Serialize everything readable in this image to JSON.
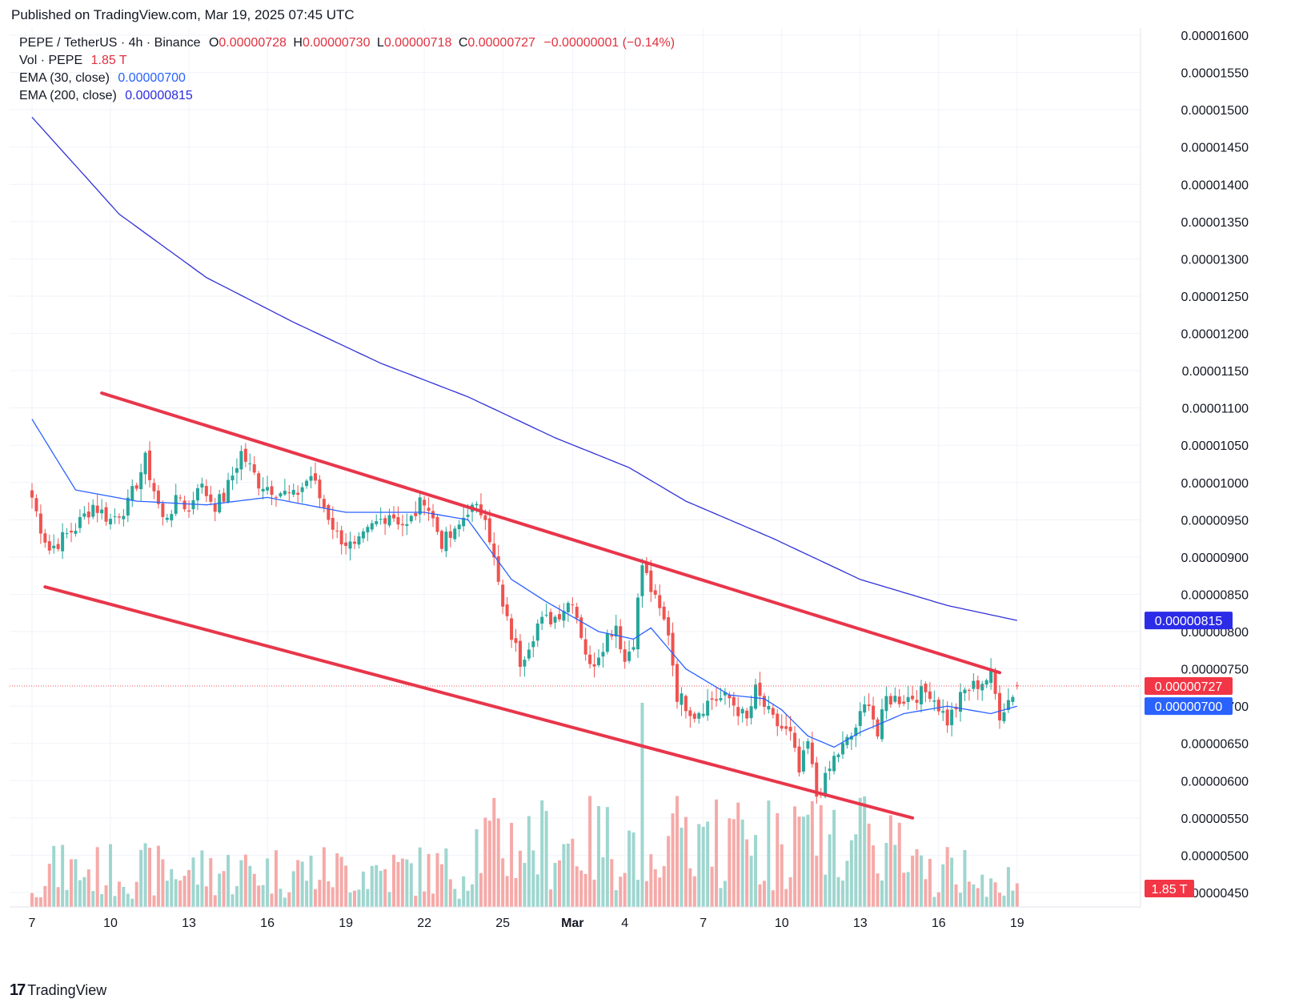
{
  "header": {
    "published": "Published on TradingView.com, Mar 19, 2025 07:45 UTC"
  },
  "legend": {
    "symbol": "PEPE / TetherUS · 4h · Binance",
    "open_label": "O",
    "open": "0.00000728",
    "high_label": "H",
    "high": "0.00000730",
    "low_label": "L",
    "low": "0.00000718",
    "close_label": "C",
    "close": "0.00000727",
    "change": "−0.00000001 (−0.14%)",
    "vol_label": "Vol · PEPE",
    "vol": "1.85 T",
    "ema30_label": "EMA (30, close)",
    "ema30": "0.00000700",
    "ema200_label": "EMA (200, close)",
    "ema200": "0.00000815"
  },
  "footer": {
    "brand": "TradingView",
    "logo_mark": "17"
  },
  "colors": {
    "up": "#26a69a",
    "down": "#ef5350",
    "ema30": "#2962ff",
    "ema200": "#3030d8",
    "trendline": "#e8364b",
    "grid": "#f0f3fa"
  },
  "chart_data": {
    "type": "candlestick",
    "symbol": "PEPE / TetherUS",
    "interval": "4h",
    "exchange": "Binance",
    "x_tick_labels": [
      "7",
      "10",
      "13",
      "16",
      "19",
      "22",
      "25",
      "Mar",
      "4",
      "7",
      "10",
      "13",
      "16",
      "19"
    ],
    "x_tick_index": [
      0,
      18,
      36,
      54,
      72,
      90,
      108,
      124,
      136,
      154,
      172,
      190,
      208,
      226
    ],
    "y_ticks": [
      "0.00000450",
      "0.00000500",
      "0.00000550",
      "0.00000600",
      "0.00000650",
      "0.00000700",
      "0.00000750",
      "0.00000800",
      "0.00000850",
      "0.00000900",
      "0.00000950",
      "0.00001000",
      "0.00001050",
      "0.00001100",
      "0.00001150",
      "0.00001200",
      "0.00001250",
      "0.00001300",
      "0.00001350",
      "0.00001400",
      "0.00001450",
      "0.00001500",
      "0.00001550",
      "0.00001600"
    ],
    "ylim": [
      4.4e-06,
      1.61e-05
    ],
    "grid": true,
    "price_scale_position": "right",
    "last_price": {
      "value": 7.27e-06,
      "label": "0.00000727"
    },
    "ema30_badge": "0.00000700",
    "ema200_badge": "0.00000815",
    "volume_badge": "1.85 T",
    "close_anchors": [
      [
        0,
        9.8
      ],
      [
        2,
        9.4
      ],
      [
        4,
        9.1
      ],
      [
        6,
        9.2
      ],
      [
        10,
        9.4
      ],
      [
        14,
        9.7
      ],
      [
        18,
        9.5
      ],
      [
        22,
        9.7
      ],
      [
        26,
        10.3
      ],
      [
        30,
        9.5
      ],
      [
        34,
        9.8
      ],
      [
        36,
        9.6
      ],
      [
        38,
        10.0
      ],
      [
        42,
        9.7
      ],
      [
        44,
        9.8
      ],
      [
        48,
        10.4
      ],
      [
        52,
        10.0
      ],
      [
        56,
        9.9
      ],
      [
        60,
        9.8
      ],
      [
        64,
        10.1
      ],
      [
        66,
        9.8
      ],
      [
        70,
        9.3
      ],
      [
        74,
        9.1
      ],
      [
        78,
        9.4
      ],
      [
        82,
        9.6
      ],
      [
        86,
        9.4
      ],
      [
        90,
        9.8
      ],
      [
        94,
        9.2
      ],
      [
        97,
        9.3
      ],
      [
        100,
        9.65
      ],
      [
        104,
        9.6
      ],
      [
        108,
        8.3
      ],
      [
        112,
        7.6
      ],
      [
        116,
        8.1
      ],
      [
        120,
        8.2
      ],
      [
        124,
        8.45
      ],
      [
        128,
        7.5
      ],
      [
        132,
        7.95
      ],
      [
        134,
        8.1
      ],
      [
        136,
        7.6
      ],
      [
        138,
        7.9
      ],
      [
        140,
        8.9
      ],
      [
        143,
        8.4
      ],
      [
        146,
        8.0
      ],
      [
        148,
        7.15
      ],
      [
        152,
        6.9
      ],
      [
        156,
        7.1
      ],
      [
        160,
        7.1
      ],
      [
        164,
        6.8
      ],
      [
        166,
        7.2
      ],
      [
        170,
        6.8
      ],
      [
        174,
        6.6
      ],
      [
        176,
        6.1
      ],
      [
        178,
        6.5
      ],
      [
        180,
        5.8
      ],
      [
        182,
        6.0
      ],
      [
        184,
        6.3
      ],
      [
        188,
        6.6
      ],
      [
        192,
        7.1
      ],
      [
        194,
        6.6
      ],
      [
        196,
        7.1
      ],
      [
        200,
        7.1
      ],
      [
        206,
        7.2
      ],
      [
        210,
        6.8
      ],
      [
        214,
        7.2
      ],
      [
        220,
        7.4
      ],
      [
        222,
        6.9
      ],
      [
        226,
        7.27
      ]
    ],
    "ema200_anchors": [
      [
        0,
        14.9
      ],
      [
        20,
        13.6
      ],
      [
        40,
        12.75
      ],
      [
        60,
        12.15
      ],
      [
        80,
        11.6
      ],
      [
        100,
        11.15
      ],
      [
        120,
        10.6
      ],
      [
        137,
        10.2
      ],
      [
        150,
        9.75
      ],
      [
        170,
        9.25
      ],
      [
        190,
        8.7
      ],
      [
        210,
        8.35
      ],
      [
        226,
        8.15
      ]
    ],
    "ema30_anchors": [
      [
        0,
        10.85
      ],
      [
        10,
        9.9
      ],
      [
        24,
        9.75
      ],
      [
        40,
        9.7
      ],
      [
        54,
        9.8
      ],
      [
        72,
        9.6
      ],
      [
        90,
        9.6
      ],
      [
        100,
        9.5
      ],
      [
        110,
        8.7
      ],
      [
        118,
        8.4
      ],
      [
        124,
        8.2
      ],
      [
        130,
        8.0
      ],
      [
        138,
        7.9
      ],
      [
        142,
        8.05
      ],
      [
        150,
        7.5
      ],
      [
        160,
        7.15
      ],
      [
        168,
        7.1
      ],
      [
        172,
        6.95
      ],
      [
        178,
        6.6
      ],
      [
        184,
        6.45
      ],
      [
        190,
        6.65
      ],
      [
        200,
        6.9
      ],
      [
        210,
        7.0
      ],
      [
        220,
        6.9
      ],
      [
        226,
        7.0
      ]
    ],
    "anchor_units": "price in units of 0.000001 USDT; index = 4h bar number from Mar 7 (Feb) tick",
    "descending_channel": {
      "upper": [
        [
          16,
          11.2
        ],
        [
          222,
          7.45
        ]
      ],
      "lower": [
        [
          3,
          8.6
        ],
        [
          202,
          5.5
        ]
      ]
    }
  }
}
